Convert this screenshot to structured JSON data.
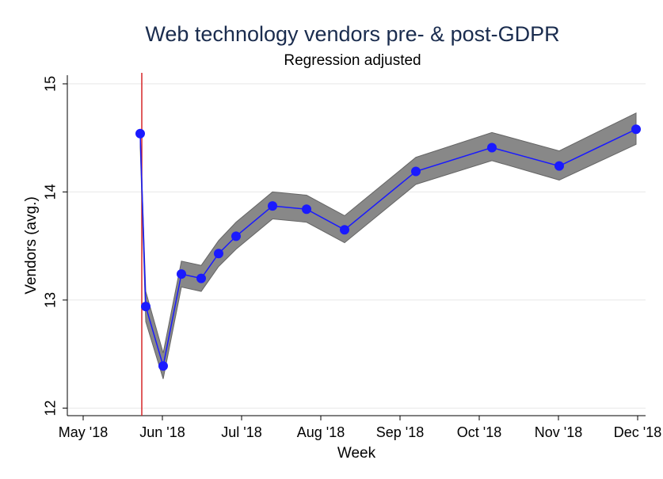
{
  "chart_data": {
    "type": "line",
    "title": "Web technology vendors pre- & post-GDPR",
    "subtitle": "Regression adjusted",
    "xlabel": "Week",
    "ylabel": "Vendors (avg.)",
    "x": [
      5.72,
      5.79,
      6.01,
      6.24,
      6.49,
      6.71,
      6.93,
      7.39,
      7.82,
      8.3,
      9.2,
      10.16,
      11.01,
      11.98
    ],
    "series": [
      {
        "color": "#1a1aff",
        "values": [
          14.54,
          12.94,
          12.39,
          13.24,
          13.2,
          13.43,
          13.59,
          13.87,
          13.84,
          13.65,
          14.19,
          14.41,
          14.24,
          14.58
        ],
        "ci_lower": [
          14.42,
          12.8,
          12.27,
          13.12,
          13.08,
          13.31,
          13.47,
          13.75,
          13.72,
          13.53,
          14.07,
          14.29,
          14.11,
          14.44
        ],
        "ci_upper": [
          14.56,
          13.08,
          12.51,
          13.36,
          13.32,
          13.55,
          13.72,
          14.0,
          13.97,
          13.78,
          14.32,
          14.55,
          14.38,
          14.73
        ],
        "band_color": "#888888"
      }
    ],
    "vline": {
      "x": 5.74,
      "color": "#d62728"
    },
    "xlim": [
      4.8,
      12.1
    ],
    "xticks": [
      {
        "value": 5,
        "label": "May '18"
      },
      {
        "value": 6,
        "label": "Jun '18"
      },
      {
        "value": 7,
        "label": "Jul '18"
      },
      {
        "value": 8,
        "label": "Aug '18"
      },
      {
        "value": 9,
        "label": "Sep '18"
      },
      {
        "value": 10,
        "label": "Oct '18"
      },
      {
        "value": 11,
        "label": "Nov '18"
      },
      {
        "value": 12,
        "label": "Dec '18"
      }
    ],
    "ylim": [
      11.93,
      15.08
    ],
    "yticks": [
      12,
      13,
      14,
      15
    ],
    "grid": true
  }
}
